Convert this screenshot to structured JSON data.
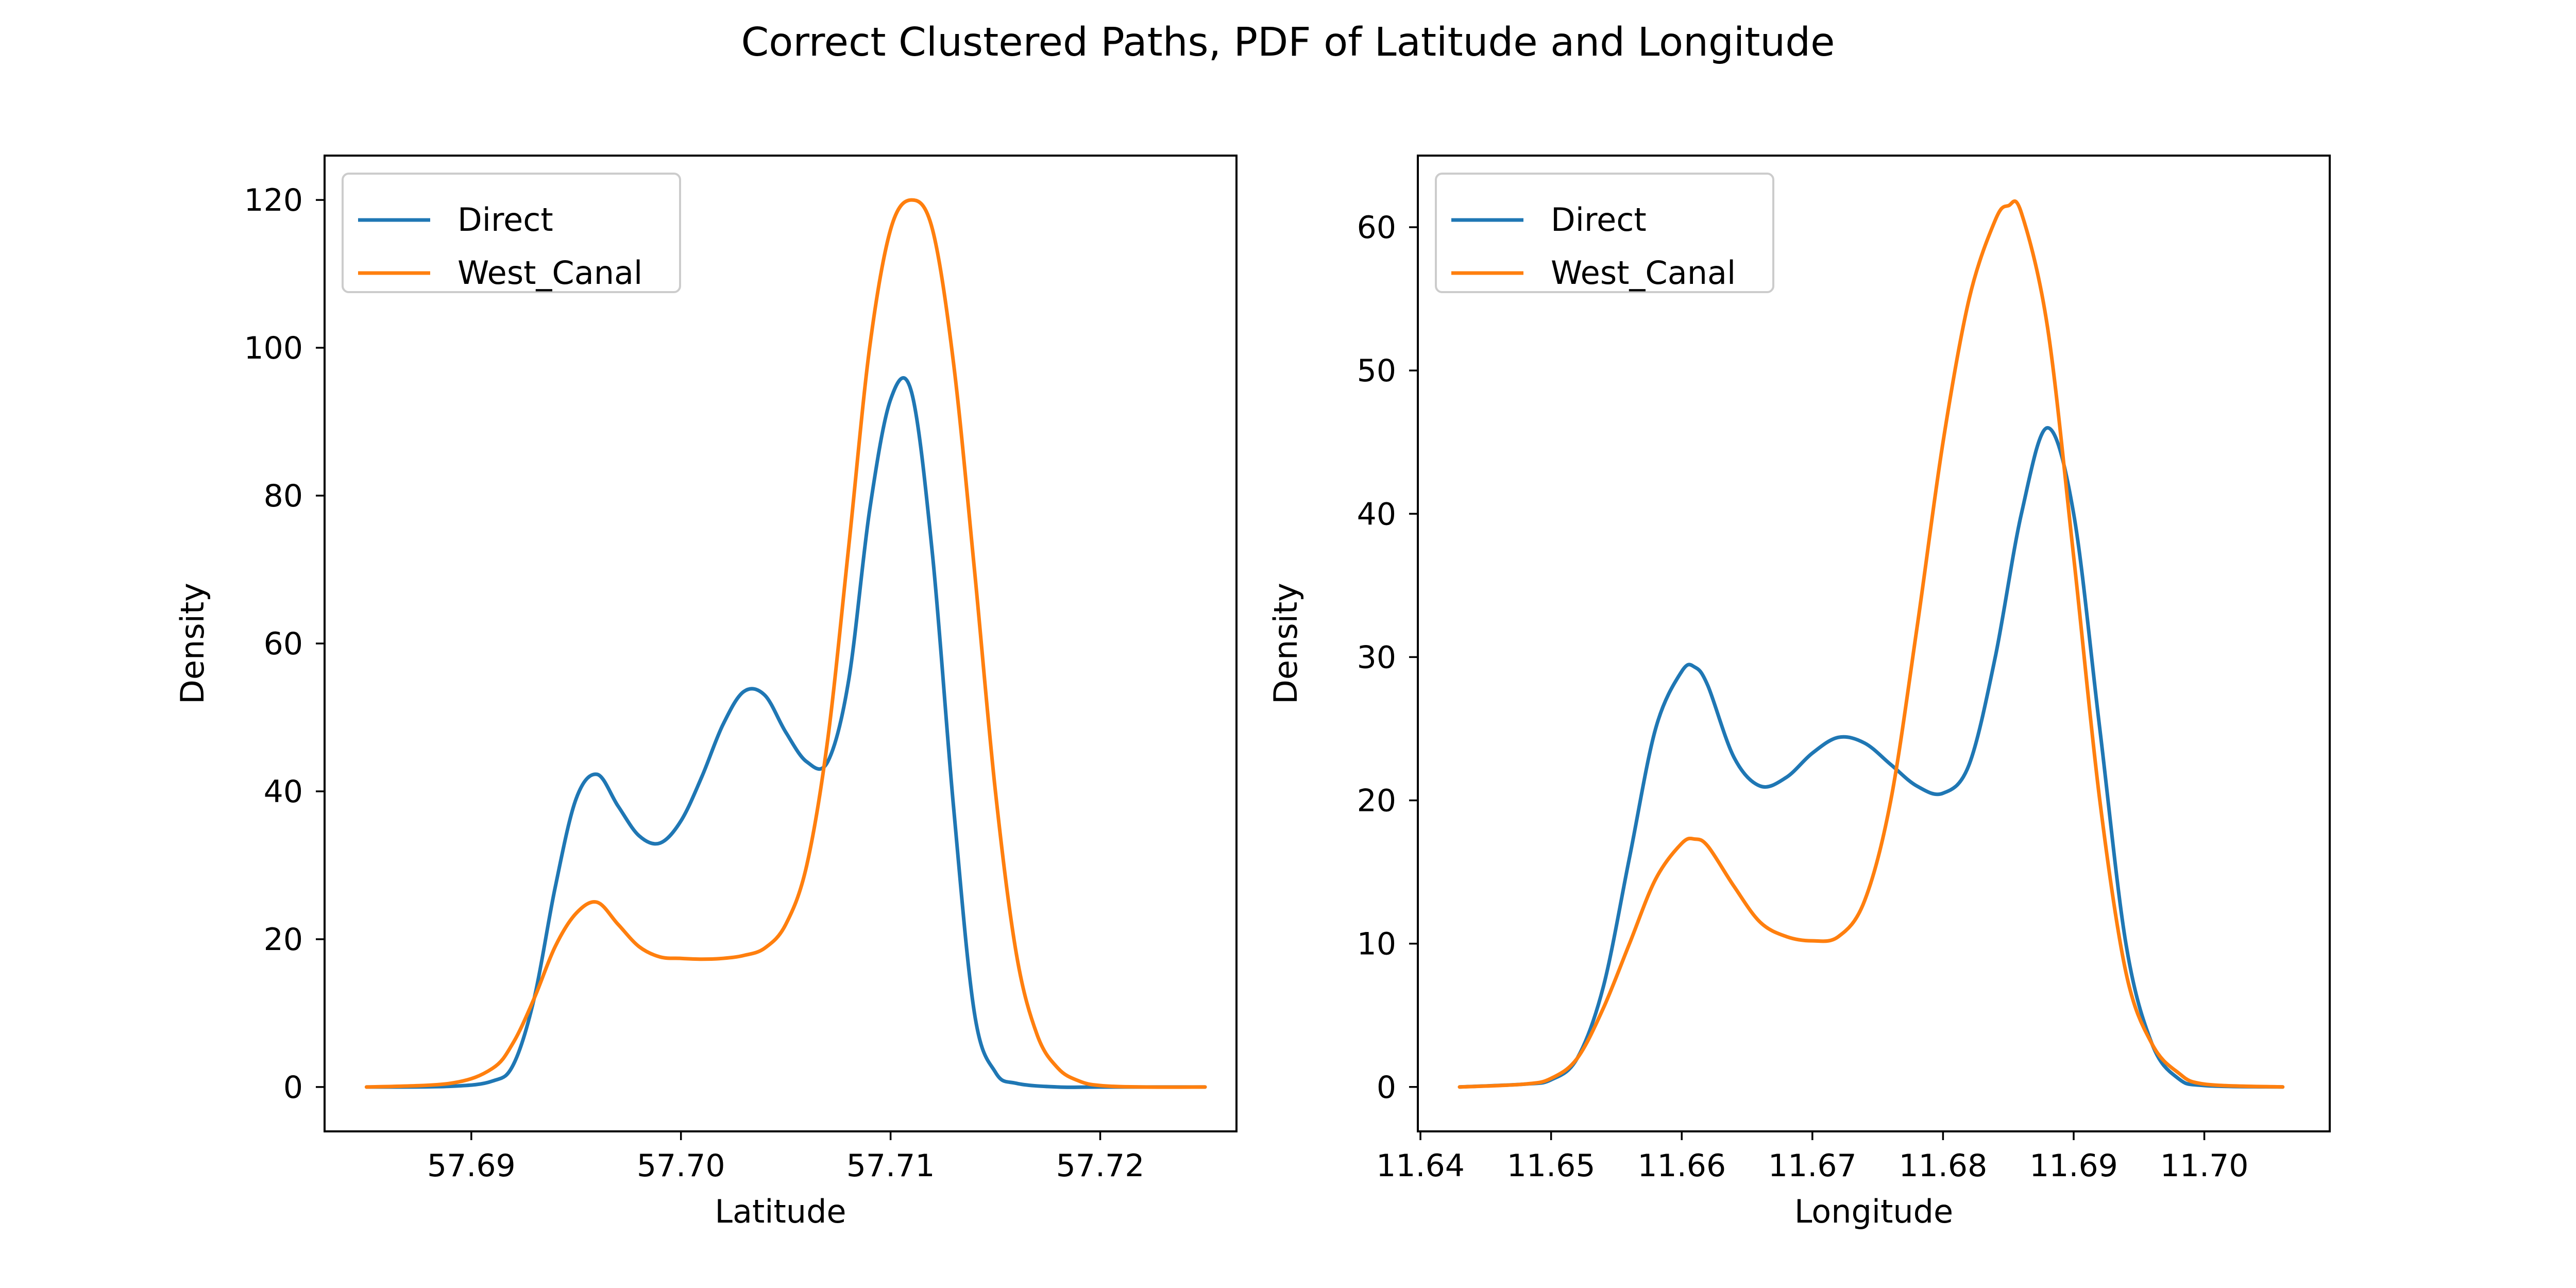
{
  "figure": {
    "title": "Correct Clustered Paths,  PDF of Latitude and Longitude"
  },
  "colors": {
    "direct": "#1f77b4",
    "west_canal": "#ff7f0e"
  },
  "chart_data": [
    {
      "type": "line",
      "xlabel": "Latitude",
      "ylabel": "Density",
      "xlim": [
        57.683,
        57.7265
      ],
      "ylim": [
        -6,
        126
      ],
      "xticks": [
        57.69,
        57.7,
        57.71,
        57.72
      ],
      "xtick_labels": [
        "57.69",
        "57.70",
        "57.71",
        "57.72"
      ],
      "yticks": [
        0,
        20,
        40,
        60,
        80,
        100,
        120
      ],
      "ytick_labels": [
        "0",
        "20",
        "40",
        "60",
        "80",
        "100",
        "120"
      ],
      "grid": false,
      "legend": "top-left",
      "series": [
        {
          "name": "Direct",
          "color": "#1f77b4",
          "x": [
            57.685,
            57.689,
            57.691,
            57.692,
            57.693,
            57.694,
            57.695,
            57.696,
            57.697,
            57.698,
            57.699,
            57.7,
            57.701,
            57.702,
            57.703,
            57.704,
            57.705,
            57.706,
            57.707,
            57.708,
            57.709,
            57.71,
            57.711,
            57.712,
            57.713,
            57.714,
            57.715,
            57.716,
            57.718,
            57.72,
            57.725
          ],
          "y": [
            0,
            0.1,
            0.8,
            3,
            12,
            27,
            39,
            42.3,
            38,
            34,
            33,
            36,
            42,
            49,
            53.5,
            53,
            48,
            44,
            44,
            55,
            78,
            93,
            94,
            72,
            38,
            10,
            2,
            0.5,
            0,
            0,
            0
          ]
        },
        {
          "name": "West_Canal",
          "color": "#ff7f0e",
          "x": [
            57.685,
            57.689,
            57.691,
            57.692,
            57.693,
            57.694,
            57.695,
            57.696,
            57.697,
            57.698,
            57.699,
            57.7,
            57.701,
            57.702,
            57.703,
            57.704,
            57.705,
            57.706,
            57.707,
            57.708,
            57.709,
            57.71,
            57.711,
            57.712,
            57.713,
            57.714,
            57.715,
            57.716,
            57.717,
            57.718,
            57.719,
            57.72,
            57.722,
            57.725
          ],
          "y": [
            0,
            0.5,
            2.5,
            6,
            12,
            19,
            23.5,
            25,
            22,
            19,
            17.6,
            17.4,
            17.3,
            17.4,
            17.8,
            18.8,
            22,
            30,
            47,
            73,
            100,
            116,
            120,
            116,
            98,
            70,
            40,
            18,
            7,
            2.5,
            0.8,
            0.2,
            0,
            0
          ]
        }
      ]
    },
    {
      "type": "line",
      "xlabel": "Longitude",
      "ylabel": "Density",
      "xlim": [
        11.6398,
        11.7096
      ],
      "ylim": [
        -3.1,
        65
      ],
      "xticks": [
        11.64,
        11.65,
        11.66,
        11.67,
        11.68,
        11.69,
        11.7
      ],
      "xtick_labels": [
        "11.64",
        "11.65",
        "11.66",
        "11.67",
        "11.68",
        "11.69",
        "11.70"
      ],
      "yticks": [
        0,
        10,
        20,
        30,
        40,
        50,
        60
      ],
      "ytick_labels": [
        "0",
        "10",
        "20",
        "30",
        "40",
        "50",
        "60"
      ],
      "grid": false,
      "legend": "top-left",
      "series": [
        {
          "name": "Direct",
          "color": "#1f77b4",
          "x": [
            11.643,
            11.648,
            11.65,
            11.652,
            11.654,
            11.656,
            11.658,
            11.66,
            11.661,
            11.662,
            11.664,
            11.666,
            11.668,
            11.67,
            11.672,
            11.674,
            11.676,
            11.678,
            11.68,
            11.682,
            11.684,
            11.686,
            11.688,
            11.69,
            11.692,
            11.694,
            11.696,
            11.698,
            11.7,
            11.706
          ],
          "y": [
            0,
            0.2,
            0.5,
            2,
            7,
            16,
            25,
            29,
            29.3,
            28,
            23,
            21,
            21.6,
            23.3,
            24.4,
            24,
            22.5,
            21,
            20.5,
            22.5,
            30,
            40,
            46,
            40,
            25,
            10,
            3,
            0.6,
            0.1,
            0
          ]
        },
        {
          "name": "West_Canal",
          "color": "#ff7f0e",
          "x": [
            11.643,
            11.648,
            11.65,
            11.652,
            11.654,
            11.656,
            11.658,
            11.66,
            11.661,
            11.662,
            11.664,
            11.666,
            11.668,
            11.67,
            11.672,
            11.674,
            11.676,
            11.678,
            11.68,
            11.682,
            11.684,
            11.685,
            11.686,
            11.688,
            11.69,
            11.692,
            11.694,
            11.696,
            11.698,
            11.7,
            11.706
          ],
          "y": [
            0,
            0.2,
            0.6,
            2,
            5.5,
            10,
            14.5,
            17,
            17.3,
            16.8,
            14,
            11.5,
            10.5,
            10.2,
            10.5,
            13,
            20,
            32,
            45,
            55,
            60.5,
            61.5,
            61,
            53,
            37,
            20,
            8,
            3,
            1,
            0.2,
            0
          ]
        }
      ]
    }
  ]
}
